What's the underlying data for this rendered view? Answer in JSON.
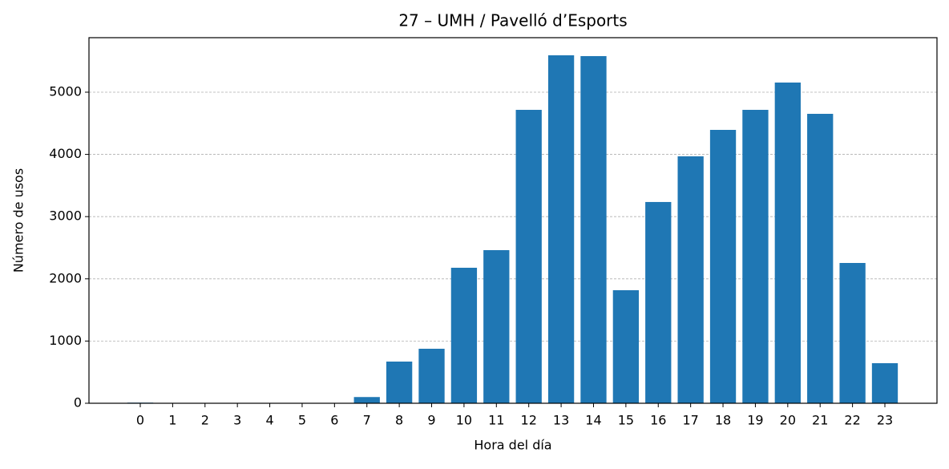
{
  "chart_data": {
    "type": "bar",
    "title": "27 – UMH / Pavelló d’Esports",
    "x_label": "Hora del día",
    "y_label": "Número de usos",
    "categories": [
      "0",
      "1",
      "2",
      "3",
      "4",
      "5",
      "6",
      "7",
      "8",
      "9",
      "10",
      "11",
      "12",
      "13",
      "14",
      "15",
      "16",
      "17",
      "18",
      "19",
      "20",
      "21",
      "22",
      "23"
    ],
    "values": [
      10,
      5,
      0,
      0,
      0,
      0,
      0,
      100,
      670,
      876,
      2178,
      2461,
      4716,
      5593,
      5580,
      1817,
      3235,
      3969,
      4394,
      4716,
      5155,
      4652,
      2255,
      644
    ],
    "color": "#1f77b4",
    "ylim": [
      0,
      5876
    ],
    "yticks": [
      0,
      1000,
      2000,
      3000,
      4000,
      5000
    ],
    "grid": true
  }
}
